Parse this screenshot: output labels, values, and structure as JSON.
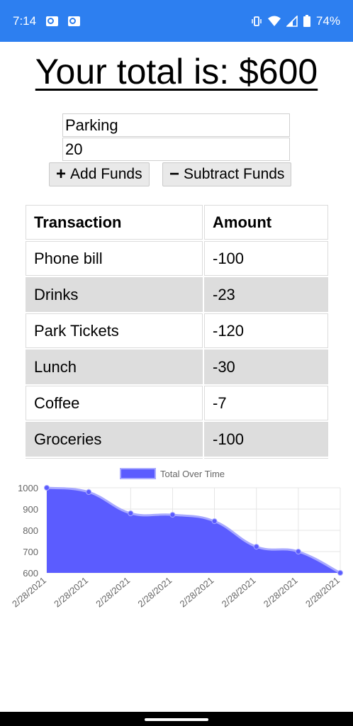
{
  "status_bar": {
    "time": "7:14",
    "battery": "74%"
  },
  "header": {
    "total_text": "Your total is: $600"
  },
  "form": {
    "name_value": "Parking",
    "amount_value": "20",
    "add_label": "Add Funds",
    "subtract_label": "Subtract Funds"
  },
  "table": {
    "headers": [
      "Transaction",
      "Amount"
    ],
    "rows": [
      [
        "Phone bill",
        "-100"
      ],
      [
        "Drinks",
        "-23"
      ],
      [
        "Park Tickets",
        "-120"
      ],
      [
        "Lunch",
        "-30"
      ],
      [
        "Coffee",
        "-7"
      ],
      [
        "Groceries",
        "-100"
      ]
    ]
  },
  "chart_data": {
    "type": "area",
    "series": [
      {
        "name": "Total Over Time",
        "values": [
          1000,
          980,
          880,
          873,
          843,
          723,
          700,
          600
        ]
      }
    ],
    "categories": [
      "2/28/2021",
      "2/28/2021",
      "2/28/2021",
      "2/28/2021",
      "2/28/2021",
      "2/28/2021",
      "2/28/2021",
      "2/28/2021"
    ],
    "yticks": [
      1000,
      900,
      800,
      700,
      600
    ],
    "ylim": [
      600,
      1000
    ],
    "grid": true,
    "legend": "top",
    "colors": {
      "fill": "#5b5cff",
      "stroke": "#a8a9ff",
      "grid": "#e5e5e5",
      "text": "#666666"
    }
  }
}
